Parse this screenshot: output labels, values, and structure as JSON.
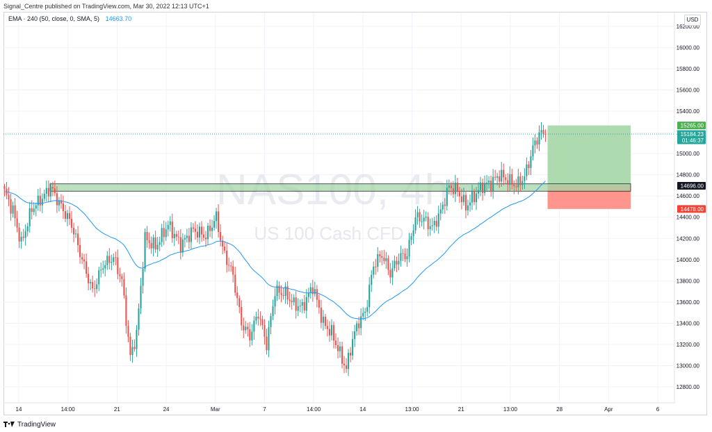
{
  "header": {
    "publisher_line": "Signal_Centre published on TradingView.com, Mar 30, 2022 12:13 UTC+1"
  },
  "legend": {
    "indicator": "EMA · 240 (50, close, 0, SMA, 5)",
    "value": "14663.70"
  },
  "currency": "USD",
  "watermark": {
    "symbol": "NAS100, 4h",
    "description": "US 100 Cash CFD"
  },
  "footer": {
    "brand": "TradingView"
  },
  "colors": {
    "up": "#26a69a",
    "down": "#ef5350",
    "ema": "#2196f3",
    "target_zone": "#a5d6a7",
    "stop_zone": "#ff8a80",
    "support_zone": "#a5d6a7"
  },
  "chart_data": {
    "type": "candlestick",
    "timeframe": "4h",
    "ylim": [
      12650,
      16330
    ],
    "y_ticks": [
      12800,
      13000,
      13200,
      13400,
      13600,
      13800,
      14000,
      14200,
      14400,
      14600,
      14800,
      15000,
      15200,
      15400,
      15600,
      15800,
      16000,
      16200
    ],
    "y_tick_labels": [
      "12800.00",
      "13000.00",
      "13200.00",
      "13400.00",
      "13600.00",
      "13800.00",
      "14000.00",
      "14200.00",
      "14400.00",
      "14600.00",
      "14800.00",
      "15000.00",
      "15200.00",
      "15400.00",
      "15600.00",
      "15800.00",
      "16000.00",
      "16200.00"
    ],
    "x_tick_labels": [
      "14",
      "14:00",
      "21",
      "24",
      "Mar",
      "7",
      "14:00",
      "14",
      "13:00",
      "21",
      "13:00",
      "28",
      "Apr",
      "6"
    ],
    "price_labels": {
      "target": "15265.00",
      "last_price": "15184.23",
      "countdown": "01:46:37",
      "entry": "14696.00",
      "stop": "14478.00"
    },
    "levels": {
      "target": 15265,
      "last": 15184.23,
      "entry": 14696,
      "stop": 14478
    },
    "support_zone": [
      14645,
      14715
    ],
    "series": [
      {
        "name": "EMA · 240 (50, close, 0, SMA, 5)",
        "type": "line"
      }
    ],
    "waypoints": [
      [
        0,
        14640
      ],
      [
        4,
        14460
      ],
      [
        8,
        14150
      ],
      [
        13,
        14480
      ],
      [
        17,
        14560
      ],
      [
        22,
        14680
      ],
      [
        27,
        14500
      ],
      [
        32,
        14330
      ],
      [
        37,
        14000
      ],
      [
        42,
        13700
      ],
      [
        47,
        13950
      ],
      [
        52,
        14020
      ],
      [
        56,
        13800
      ],
      [
        60,
        13080
      ],
      [
        63,
        13300
      ],
      [
        67,
        14200
      ],
      [
        72,
        14120
      ],
      [
        78,
        14330
      ],
      [
        84,
        14140
      ],
      [
        90,
        14280
      ],
      [
        96,
        14220
      ],
      [
        101,
        14400
      ],
      [
        104,
        14100
      ],
      [
        109,
        13850
      ],
      [
        113,
        13400
      ],
      [
        117,
        13280
      ],
      [
        121,
        13500
      ],
      [
        125,
        13200
      ],
      [
        129,
        13700
      ],
      [
        134,
        13680
      ],
      [
        138,
        13580
      ],
      [
        142,
        13550
      ],
      [
        147,
        13750
      ],
      [
        152,
        13400
      ],
      [
        156,
        13310
      ],
      [
        160,
        13110
      ],
      [
        163,
        12970
      ],
      [
        166,
        13250
      ],
      [
        169,
        13420
      ],
      [
        172,
        13500
      ],
      [
        176,
        13950
      ],
      [
        180,
        14050
      ],
      [
        184,
        13870
      ],
      [
        188,
        14020
      ],
      [
        192,
        14050
      ],
      [
        196,
        14400
      ],
      [
        200,
        14380
      ],
      [
        204,
        14300
      ],
      [
        208,
        14450
      ],
      [
        212,
        14690
      ],
      [
        216,
        14650
      ],
      [
        220,
        14500
      ],
      [
        224,
        14600
      ],
      [
        228,
        14700
      ],
      [
        232,
        14720
      ],
      [
        236,
        14800
      ],
      [
        240,
        14750
      ],
      [
        244,
        14700
      ],
      [
        248,
        14780
      ],
      [
        252,
        15050
      ],
      [
        255,
        15190
      ],
      [
        258,
        15184
      ]
    ]
  }
}
